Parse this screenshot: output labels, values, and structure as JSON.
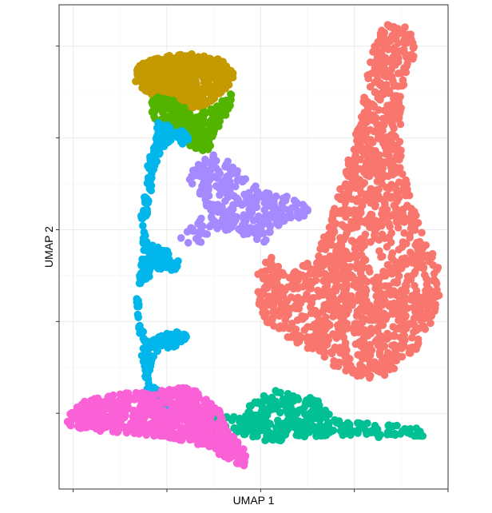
{
  "chart_data": {
    "type": "scatter",
    "title": "",
    "xlabel": "UMAP 1",
    "ylabel": "UMAP 2",
    "xlim": [
      -9.6,
      7.0
    ],
    "ylim": [
      -5.3,
      15.8
    ],
    "x_ticks": [
      -9,
      -5,
      -1,
      3,
      7
    ],
    "y_ticks": [
      -2,
      2,
      6,
      10,
      14
    ],
    "x_tick_labels_shown": false,
    "y_tick_labels_shown": false,
    "grid": true,
    "legend": "none",
    "clusters": [
      {
        "id": "red",
        "color": "#F8766D",
        "approx_points": 1400,
        "shape": [
          [
            0.1,
            4.0
          ],
          [
            1.2,
            4.7
          ],
          [
            1.9,
            6.2
          ],
          [
            2.4,
            7.8
          ],
          [
            2.9,
            9.6
          ],
          [
            3.3,
            11.3
          ],
          [
            3.6,
            13.0
          ],
          [
            3.9,
            14.2
          ],
          [
            4.2,
            15.0
          ],
          [
            5.1,
            14.9
          ],
          [
            5.6,
            14.7
          ],
          [
            5.6,
            13.6
          ],
          [
            5.2,
            12.6
          ],
          [
            5.0,
            11.2
          ],
          [
            5.0,
            9.8
          ],
          [
            5.2,
            8.4
          ],
          [
            5.6,
            7.0
          ],
          [
            6.1,
            5.6
          ],
          [
            6.6,
            4.3
          ],
          [
            6.7,
            3.1
          ],
          [
            6.3,
            1.9
          ],
          [
            5.6,
            0.6
          ],
          [
            4.6,
            -0.3
          ],
          [
            3.4,
            -0.5
          ],
          [
            2.2,
            0.0
          ],
          [
            1.2,
            0.7
          ],
          [
            0.0,
            1.4
          ],
          [
            -0.8,
            2.0
          ],
          [
            -1.2,
            3.1
          ],
          [
            -1.1,
            4.3
          ],
          [
            -0.6,
            5.0
          ]
        ]
      },
      {
        "id": "olive",
        "color": "#C49A00",
        "approx_points": 520,
        "shape": [
          [
            -6.3,
            13.0
          ],
          [
            -5.9,
            13.4
          ],
          [
            -4.9,
            13.6
          ],
          [
            -3.7,
            13.7
          ],
          [
            -2.7,
            13.4
          ],
          [
            -2.1,
            12.9
          ],
          [
            -2.2,
            12.4
          ],
          [
            -2.6,
            12.0
          ],
          [
            -3.4,
            11.4
          ],
          [
            -4.3,
            11.2
          ],
          [
            -5.1,
            11.6
          ],
          [
            -5.9,
            12.0
          ],
          [
            -6.4,
            12.5
          ]
        ]
      },
      {
        "id": "green",
        "color": "#53B400",
        "approx_points": 260,
        "shape": [
          [
            -5.6,
            11.9
          ],
          [
            -4.6,
            11.6
          ],
          [
            -3.7,
            11.0
          ],
          [
            -2.7,
            11.6
          ],
          [
            -2.2,
            12.0
          ],
          [
            -2.3,
            11.3
          ],
          [
            -2.9,
            10.3
          ],
          [
            -3.2,
            9.5
          ],
          [
            -3.7,
            9.4
          ],
          [
            -4.5,
            10.0
          ],
          [
            -5.3,
            10.5
          ],
          [
            -5.7,
            11.1
          ]
        ]
      },
      {
        "id": "teal",
        "color": "#00C094",
        "approx_points": 330,
        "shape": [
          [
            -3.6,
            -2.3
          ],
          [
            -1.9,
            -2.0
          ],
          [
            -0.9,
            -1.2
          ],
          [
            -0.2,
            -0.9
          ],
          [
            0.5,
            -1.3
          ],
          [
            1.4,
            -1.3
          ],
          [
            1.8,
            -1.9
          ],
          [
            2.5,
            -2.4
          ],
          [
            3.6,
            -2.4
          ],
          [
            4.6,
            -2.5
          ],
          [
            6.0,
            -2.7
          ],
          [
            6.0,
            -3.0
          ],
          [
            4.8,
            -3.1
          ],
          [
            3.2,
            -3.0
          ],
          [
            2.0,
            -3.0
          ],
          [
            1.0,
            -3.0
          ],
          [
            0.0,
            -3.2
          ],
          [
            -1.0,
            -3.2
          ],
          [
            -1.9,
            -2.9
          ],
          [
            -2.6,
            -2.6
          ],
          [
            -3.2,
            -2.5
          ]
        ]
      },
      {
        "id": "blue",
        "color": "#00B6EB",
        "approx_points": 430,
        "shape": [
          [
            -5.4,
            10.7
          ],
          [
            -4.8,
            10.5
          ],
          [
            -4.3,
            10.3
          ],
          [
            -3.9,
            9.8
          ],
          [
            -5.2,
            9.6
          ],
          [
            -5.6,
            8.4
          ],
          [
            -5.7,
            7.3
          ],
          [
            -6.0,
            6.0
          ],
          [
            -5.8,
            5.4
          ],
          [
            -4.9,
            5.1
          ],
          [
            -4.4,
            4.5
          ],
          [
            -4.6,
            4.2
          ],
          [
            -5.4,
            4.3
          ],
          [
            -6.1,
            3.6
          ],
          [
            -6.2,
            2.2
          ],
          [
            -5.9,
            1.2
          ],
          [
            -4.7,
            1.6
          ],
          [
            -4.0,
            1.4
          ],
          [
            -4.3,
            1.0
          ],
          [
            -5.5,
            0.6
          ],
          [
            -5.8,
            -0.5
          ],
          [
            -5.0,
            -1.3
          ],
          [
            -4.6,
            -1.6
          ],
          [
            -4.3,
            -2.0
          ],
          [
            -5.2,
            -1.9
          ],
          [
            -5.9,
            -1.3
          ],
          [
            -6.0,
            0.0
          ],
          [
            -6.2,
            1.4
          ],
          [
            -6.3,
            3.0
          ],
          [
            -6.1,
            4.6
          ],
          [
            -6.0,
            5.6
          ],
          [
            -6.1,
            6.6
          ],
          [
            -5.9,
            7.8
          ],
          [
            -5.8,
            9.0
          ],
          [
            -5.5,
            9.8
          ]
        ]
      },
      {
        "id": "purple",
        "color": "#A58AFF",
        "approx_points": 280,
        "shape": [
          [
            -3.8,
            8.9
          ],
          [
            -3.0,
            9.3
          ],
          [
            -2.4,
            9.0
          ],
          [
            -1.8,
            8.4
          ],
          [
            -1.2,
            7.9
          ],
          [
            -0.6,
            7.6
          ],
          [
            0.6,
            7.4
          ],
          [
            1.2,
            6.7
          ],
          [
            0.4,
            6.4
          ],
          [
            -0.2,
            6.2
          ],
          [
            -0.9,
            5.4
          ],
          [
            -1.5,
            5.7
          ],
          [
            -2.2,
            6.0
          ],
          [
            -2.9,
            5.9
          ],
          [
            -3.5,
            5.4
          ],
          [
            -4.3,
            5.2
          ],
          [
            -4.7,
            5.4
          ],
          [
            -3.9,
            6.2
          ],
          [
            -3.3,
            6.8
          ],
          [
            -3.7,
            7.6
          ],
          [
            -4.1,
            8.3
          ]
        ]
      },
      {
        "id": "pink",
        "color": "#FB61D7",
        "approx_points": 720,
        "shape": [
          [
            -9.3,
            -2.2
          ],
          [
            -8.8,
            -1.6
          ],
          [
            -7.8,
            -1.2
          ],
          [
            -6.7,
            -1.1
          ],
          [
            -5.5,
            -1.1
          ],
          [
            -4.6,
            -0.8
          ],
          [
            -3.8,
            -1.0
          ],
          [
            -3.2,
            -1.5
          ],
          [
            -2.6,
            -2.0
          ],
          [
            -2.5,
            -2.7
          ],
          [
            -2.0,
            -3.2
          ],
          [
            -1.6,
            -3.7
          ],
          [
            -1.7,
            -4.3
          ],
          [
            -2.5,
            -4.0
          ],
          [
            -3.2,
            -3.5
          ],
          [
            -4.2,
            -3.2
          ],
          [
            -5.4,
            -3.0
          ],
          [
            -6.4,
            -2.9
          ],
          [
            -7.6,
            -2.8
          ],
          [
            -8.7,
            -2.7
          ],
          [
            -9.2,
            -2.5
          ]
        ]
      }
    ]
  }
}
